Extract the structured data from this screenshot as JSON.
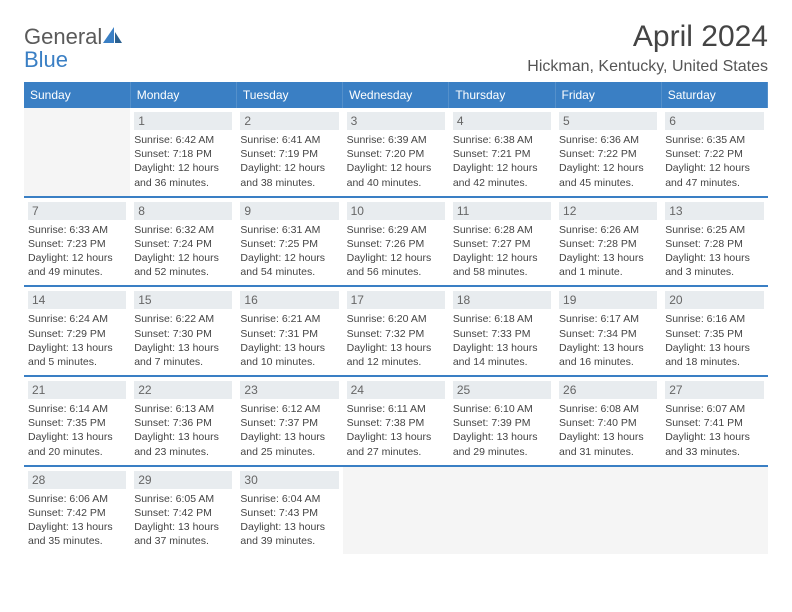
{
  "logo": {
    "word1": "General",
    "word2": "Blue"
  },
  "title": "April 2024",
  "location": "Hickman, Kentucky, United States",
  "colors": {
    "header_bg": "#3a7fc4",
    "header_text": "#ffffff",
    "daynum_bg": "#e8ecef",
    "daynum_text": "#666666",
    "border": "#3a7fc4",
    "body_text": "#444444",
    "empty_bg": "#f5f5f5"
  },
  "typography": {
    "title_fontsize": 30,
    "location_fontsize": 16,
    "weekday_fontsize": 12,
    "daynum_fontsize": 12,
    "cell_fontsize": 10.5
  },
  "weekdays": [
    "Sunday",
    "Monday",
    "Tuesday",
    "Wednesday",
    "Thursday",
    "Friday",
    "Saturday"
  ],
  "weeks": [
    [
      {
        "day": "",
        "sunrise": "",
        "sunset": "",
        "daylight": ""
      },
      {
        "day": "1",
        "sunrise": "Sunrise: 6:42 AM",
        "sunset": "Sunset: 7:18 PM",
        "daylight": "Daylight: 12 hours and 36 minutes."
      },
      {
        "day": "2",
        "sunrise": "Sunrise: 6:41 AM",
        "sunset": "Sunset: 7:19 PM",
        "daylight": "Daylight: 12 hours and 38 minutes."
      },
      {
        "day": "3",
        "sunrise": "Sunrise: 6:39 AM",
        "sunset": "Sunset: 7:20 PM",
        "daylight": "Daylight: 12 hours and 40 minutes."
      },
      {
        "day": "4",
        "sunrise": "Sunrise: 6:38 AM",
        "sunset": "Sunset: 7:21 PM",
        "daylight": "Daylight: 12 hours and 42 minutes."
      },
      {
        "day": "5",
        "sunrise": "Sunrise: 6:36 AM",
        "sunset": "Sunset: 7:22 PM",
        "daylight": "Daylight: 12 hours and 45 minutes."
      },
      {
        "day": "6",
        "sunrise": "Sunrise: 6:35 AM",
        "sunset": "Sunset: 7:22 PM",
        "daylight": "Daylight: 12 hours and 47 minutes."
      }
    ],
    [
      {
        "day": "7",
        "sunrise": "Sunrise: 6:33 AM",
        "sunset": "Sunset: 7:23 PM",
        "daylight": "Daylight: 12 hours and 49 minutes."
      },
      {
        "day": "8",
        "sunrise": "Sunrise: 6:32 AM",
        "sunset": "Sunset: 7:24 PM",
        "daylight": "Daylight: 12 hours and 52 minutes."
      },
      {
        "day": "9",
        "sunrise": "Sunrise: 6:31 AM",
        "sunset": "Sunset: 7:25 PM",
        "daylight": "Daylight: 12 hours and 54 minutes."
      },
      {
        "day": "10",
        "sunrise": "Sunrise: 6:29 AM",
        "sunset": "Sunset: 7:26 PM",
        "daylight": "Daylight: 12 hours and 56 minutes."
      },
      {
        "day": "11",
        "sunrise": "Sunrise: 6:28 AM",
        "sunset": "Sunset: 7:27 PM",
        "daylight": "Daylight: 12 hours and 58 minutes."
      },
      {
        "day": "12",
        "sunrise": "Sunrise: 6:26 AM",
        "sunset": "Sunset: 7:28 PM",
        "daylight": "Daylight: 13 hours and 1 minute."
      },
      {
        "day": "13",
        "sunrise": "Sunrise: 6:25 AM",
        "sunset": "Sunset: 7:28 PM",
        "daylight": "Daylight: 13 hours and 3 minutes."
      }
    ],
    [
      {
        "day": "14",
        "sunrise": "Sunrise: 6:24 AM",
        "sunset": "Sunset: 7:29 PM",
        "daylight": "Daylight: 13 hours and 5 minutes."
      },
      {
        "day": "15",
        "sunrise": "Sunrise: 6:22 AM",
        "sunset": "Sunset: 7:30 PM",
        "daylight": "Daylight: 13 hours and 7 minutes."
      },
      {
        "day": "16",
        "sunrise": "Sunrise: 6:21 AM",
        "sunset": "Sunset: 7:31 PM",
        "daylight": "Daylight: 13 hours and 10 minutes."
      },
      {
        "day": "17",
        "sunrise": "Sunrise: 6:20 AM",
        "sunset": "Sunset: 7:32 PM",
        "daylight": "Daylight: 13 hours and 12 minutes."
      },
      {
        "day": "18",
        "sunrise": "Sunrise: 6:18 AM",
        "sunset": "Sunset: 7:33 PM",
        "daylight": "Daylight: 13 hours and 14 minutes."
      },
      {
        "day": "19",
        "sunrise": "Sunrise: 6:17 AM",
        "sunset": "Sunset: 7:34 PM",
        "daylight": "Daylight: 13 hours and 16 minutes."
      },
      {
        "day": "20",
        "sunrise": "Sunrise: 6:16 AM",
        "sunset": "Sunset: 7:35 PM",
        "daylight": "Daylight: 13 hours and 18 minutes."
      }
    ],
    [
      {
        "day": "21",
        "sunrise": "Sunrise: 6:14 AM",
        "sunset": "Sunset: 7:35 PM",
        "daylight": "Daylight: 13 hours and 20 minutes."
      },
      {
        "day": "22",
        "sunrise": "Sunrise: 6:13 AM",
        "sunset": "Sunset: 7:36 PM",
        "daylight": "Daylight: 13 hours and 23 minutes."
      },
      {
        "day": "23",
        "sunrise": "Sunrise: 6:12 AM",
        "sunset": "Sunset: 7:37 PM",
        "daylight": "Daylight: 13 hours and 25 minutes."
      },
      {
        "day": "24",
        "sunrise": "Sunrise: 6:11 AM",
        "sunset": "Sunset: 7:38 PM",
        "daylight": "Daylight: 13 hours and 27 minutes."
      },
      {
        "day": "25",
        "sunrise": "Sunrise: 6:10 AM",
        "sunset": "Sunset: 7:39 PM",
        "daylight": "Daylight: 13 hours and 29 minutes."
      },
      {
        "day": "26",
        "sunrise": "Sunrise: 6:08 AM",
        "sunset": "Sunset: 7:40 PM",
        "daylight": "Daylight: 13 hours and 31 minutes."
      },
      {
        "day": "27",
        "sunrise": "Sunrise: 6:07 AM",
        "sunset": "Sunset: 7:41 PM",
        "daylight": "Daylight: 13 hours and 33 minutes."
      }
    ],
    [
      {
        "day": "28",
        "sunrise": "Sunrise: 6:06 AM",
        "sunset": "Sunset: 7:42 PM",
        "daylight": "Daylight: 13 hours and 35 minutes."
      },
      {
        "day": "29",
        "sunrise": "Sunrise: 6:05 AM",
        "sunset": "Sunset: 7:42 PM",
        "daylight": "Daylight: 13 hours and 37 minutes."
      },
      {
        "day": "30",
        "sunrise": "Sunrise: 6:04 AM",
        "sunset": "Sunset: 7:43 PM",
        "daylight": "Daylight: 13 hours and 39 minutes."
      },
      {
        "day": "",
        "sunrise": "",
        "sunset": "",
        "daylight": ""
      },
      {
        "day": "",
        "sunrise": "",
        "sunset": "",
        "daylight": ""
      },
      {
        "day": "",
        "sunrise": "",
        "sunset": "",
        "daylight": ""
      },
      {
        "day": "",
        "sunrise": "",
        "sunset": "",
        "daylight": ""
      }
    ]
  ]
}
